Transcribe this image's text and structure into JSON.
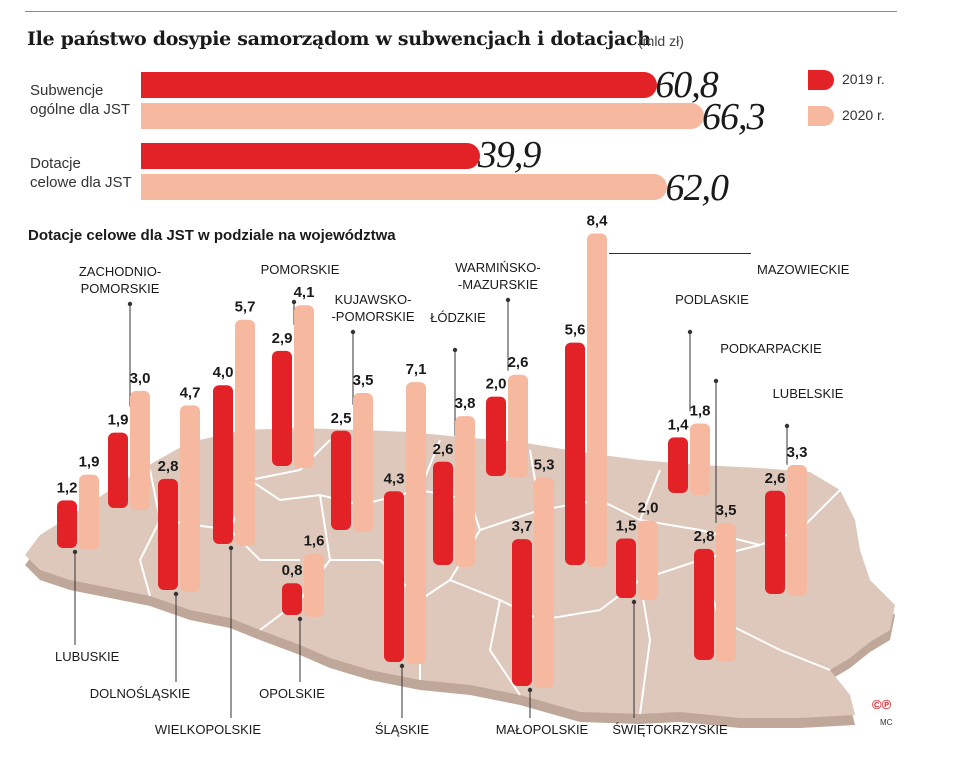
{
  "header": {
    "title": "Ile państwo dosypie samorządom w subwencjach i dotacjach",
    "unit": "(mld zł)"
  },
  "legend": {
    "y2019": "2019 r.",
    "y2020": "2020 r."
  },
  "colors": {
    "y2019": "#e32228",
    "y2020": "#f6b9a0",
    "map_fill": "#ddc8bb",
    "map_edge": "#bfa799",
    "map_border": "#ffffff"
  },
  "chart_data": [
    {
      "type": "bar",
      "orientation": "horizontal",
      "title": "Ile państwo dosypie samorządom w subwencjach i dotacjach (mld zł)",
      "categories": [
        "Subwencje ogólne dla JST",
        "Dotacje celowe dla JST"
      ],
      "category_lines": [
        [
          "Subwencje",
          "ogólne dla JST"
        ],
        [
          "Dotacje",
          "celowe dla JST"
        ]
      ],
      "series": [
        {
          "name": "2019 r.",
          "values": [
            60.8,
            39.9
          ],
          "labels": [
            "60,8",
            "39,9"
          ]
        },
        {
          "name": "2020 r.",
          "values": [
            66.3,
            62.0
          ],
          "labels": [
            "66,3",
            "62,0"
          ]
        }
      ],
      "xlim": [
        0,
        70
      ],
      "legend": "right"
    },
    {
      "type": "bar",
      "title": "Dotacje celowe dla JST w podziale na województwa",
      "regions": [
        {
          "name": "LUBUSKIE",
          "v2019": 1.2,
          "v2020": 1.9,
          "l2019": "1,2",
          "l2020": "1,9"
        },
        {
          "name": "ZACHODNIO-POMORSKIE",
          "v2019": 1.9,
          "v2020": 3.0,
          "l2019": "1,9",
          "l2020": "3,0"
        },
        {
          "name": "DOLNOŚLĄSKIE",
          "v2019": 2.8,
          "v2020": 4.7,
          "l2019": "2,8",
          "l2020": "4,7"
        },
        {
          "name": "WIELKOPOLSKIE",
          "v2019": 4.0,
          "v2020": 5.7,
          "l2019": "4,0",
          "l2020": "5,7"
        },
        {
          "name": "POMORSKIE",
          "v2019": 2.9,
          "v2020": 4.1,
          "l2019": "2,9",
          "l2020": "4,1"
        },
        {
          "name": "OPOLSKIE",
          "v2019": 0.8,
          "v2020": 1.6,
          "l2019": "0,8",
          "l2020": "1,6"
        },
        {
          "name": "KUJAWSKO-POMORSKIE",
          "v2019": 2.5,
          "v2020": 3.5,
          "l2019": "2,5",
          "l2020": "3,5"
        },
        {
          "name": "ŚLĄSKIE",
          "v2019": 4.3,
          "v2020": 7.1,
          "l2019": "4,3",
          "l2020": "7,1"
        },
        {
          "name": "ŁÓDZKIE",
          "v2019": 2.6,
          "v2020": 3.8,
          "l2019": "2,6",
          "l2020": "3,8"
        },
        {
          "name": "WARMIŃSKO-MAZURSKIE",
          "v2019": 2.0,
          "v2020": 2.6,
          "l2019": "2,0",
          "l2020": "2,6"
        },
        {
          "name": "MAŁOPOLSKIE",
          "v2019": 3.7,
          "v2020": 5.3,
          "l2019": "3,7",
          "l2020": "5,3"
        },
        {
          "name": "MAZOWIECKIE",
          "v2019": 5.6,
          "v2020": 8.4,
          "l2019": "5,6",
          "l2020": "8,4"
        },
        {
          "name": "ŚWIĘTOKRZYSKIE",
          "v2019": 1.5,
          "v2020": 2.0,
          "l2019": "1,5",
          "l2020": "2,0"
        },
        {
          "name": "PODLASKIE",
          "v2019": 1.4,
          "v2020": 1.8,
          "l2019": "1,4",
          "l2020": "1,8"
        },
        {
          "name": "PODKARPACKIE",
          "v2019": 2.8,
          "v2020": 3.5,
          "l2019": "2,8",
          "l2020": "3,5"
        },
        {
          "name": "LUBELSKIE",
          "v2019": 2.6,
          "v2020": 3.3,
          "l2019": "2,6",
          "l2020": "3,3"
        }
      ]
    }
  ],
  "credit": {
    "symbols": "©℗",
    "author": "MC"
  }
}
